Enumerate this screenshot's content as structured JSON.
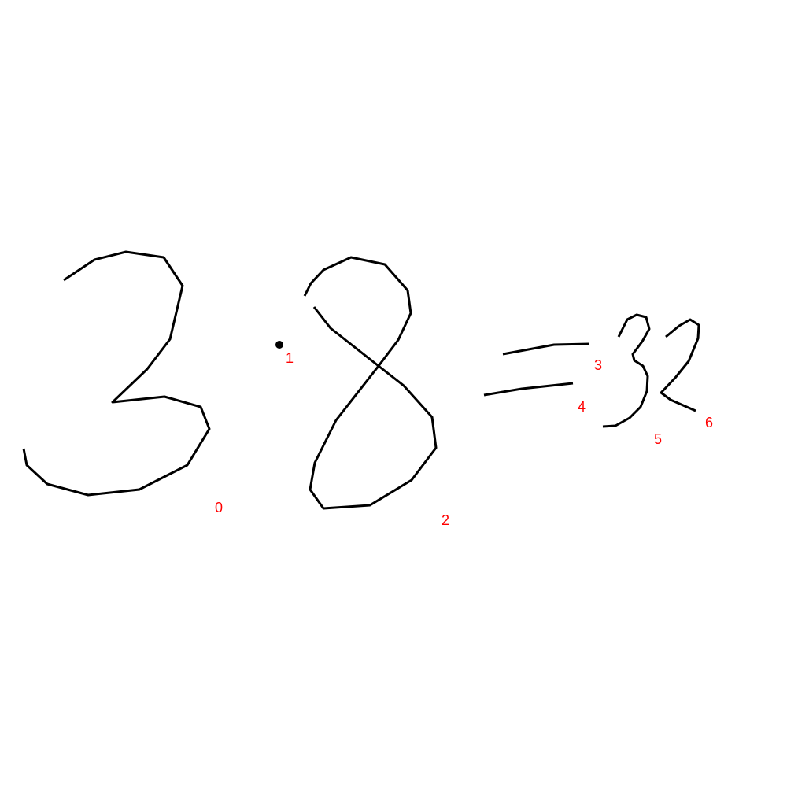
{
  "colors": {
    "background": "#ffffff",
    "ink": "#000000",
    "label": "#ff0000"
  },
  "strokes": [
    {
      "label": "0"
    },
    {
      "label": "1"
    },
    {
      "label": "2"
    },
    {
      "label": "3"
    },
    {
      "label": "4"
    },
    {
      "label": "5"
    },
    {
      "label": "6"
    }
  ]
}
